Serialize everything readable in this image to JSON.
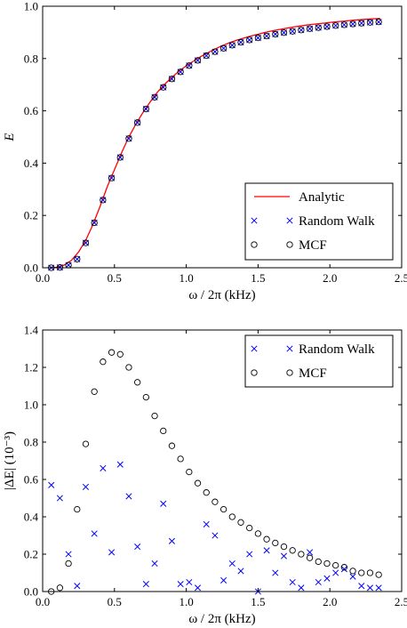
{
  "colors": {
    "analytic": "#ff0000",
    "random_walk": "#0000ff",
    "mcf": "#000000",
    "axes": "#000000",
    "background": "#ffffff"
  },
  "chart_data": [
    {
      "type": "line",
      "xlabel": "ω / 2π (kHz)",
      "ylabel": "E",
      "xlim": [
        0,
        2.5
      ],
      "ylim": [
        0,
        1.0
      ],
      "xticks": [
        "0.0",
        "0.5",
        "1.0",
        "1.5",
        "2.0",
        "2.5"
      ],
      "yticks": [
        "0.0",
        "0.2",
        "0.4",
        "0.6",
        "0.8",
        "1.0"
      ],
      "grid": false,
      "legend_position": "bottom-right",
      "series": [
        {
          "name": "Analytic",
          "style": "line",
          "x": [
            0.05,
            0.06,
            0.075,
            0.1,
            0.15,
            0.2,
            0.25,
            0.3,
            0.35,
            0.4,
            0.45,
            0.5,
            0.55,
            0.6,
            0.65,
            0.7,
            0.75,
            0.8,
            0.85,
            0.9,
            0.95,
            1.0,
            1.05,
            1.1,
            1.15,
            1.2,
            1.25,
            1.3,
            1.35,
            1.4,
            1.45,
            1.5,
            1.55,
            1.6,
            1.65,
            1.7,
            1.75,
            1.8,
            1.85,
            1.9,
            1.95,
            2.0,
            2.05,
            2.1,
            2.15,
            2.2,
            2.25,
            2.3,
            2.35
          ],
          "y": [
            0.0,
            0.0,
            0.001,
            0.002,
            0.01,
            0.028,
            0.06,
            0.105,
            0.165,
            0.235,
            0.31,
            0.375,
            0.44,
            0.5,
            0.55,
            0.595,
            0.635,
            0.672,
            0.702,
            0.728,
            0.752,
            0.772,
            0.79,
            0.807,
            0.822,
            0.836,
            0.849,
            0.86,
            0.87,
            0.878,
            0.886,
            0.893,
            0.9,
            0.906,
            0.911,
            0.916,
            0.921,
            0.925,
            0.929,
            0.932,
            0.935,
            0.938,
            0.941,
            0.943,
            0.946,
            0.948,
            0.95,
            0.952,
            0.953
          ]
        },
        {
          "name": "Random Walk",
          "style": "x-markers",
          "x": [
            0.06,
            0.12,
            0.18,
            0.24,
            0.3,
            0.36,
            0.42,
            0.48,
            0.54,
            0.6,
            0.66,
            0.72,
            0.78,
            0.84,
            0.9,
            0.96,
            1.02,
            1.08,
            1.14,
            1.2,
            1.26,
            1.32,
            1.38,
            1.44,
            1.5,
            1.56,
            1.62,
            1.68,
            1.74,
            1.8,
            1.86,
            1.92,
            1.98,
            2.04,
            2.1,
            2.16,
            2.22,
            2.28,
            2.34
          ],
          "y": [
            0.0,
            0.001,
            0.01,
            0.033,
            0.095,
            0.172,
            0.259,
            0.343,
            0.422,
            0.494,
            0.555,
            0.607,
            0.652,
            0.69,
            0.722,
            0.749,
            0.773,
            0.793,
            0.811,
            0.826,
            0.839,
            0.851,
            0.862,
            0.871,
            0.879,
            0.886,
            0.893,
            0.899,
            0.904,
            0.909,
            0.914,
            0.918,
            0.922,
            0.926,
            0.929,
            0.932,
            0.935,
            0.938,
            0.94
          ]
        },
        {
          "name": "MCF",
          "style": "open-circles",
          "x": [
            0.06,
            0.12,
            0.18,
            0.24,
            0.3,
            0.36,
            0.42,
            0.48,
            0.54,
            0.6,
            0.66,
            0.72,
            0.78,
            0.84,
            0.9,
            0.96,
            1.02,
            1.08,
            1.14,
            1.2,
            1.26,
            1.32,
            1.38,
            1.44,
            1.5,
            1.56,
            1.62,
            1.68,
            1.74,
            1.8,
            1.86,
            1.92,
            1.98,
            2.04,
            2.1,
            2.16,
            2.22,
            2.28,
            2.34
          ],
          "y": [
            0.0,
            0.001,
            0.01,
            0.033,
            0.095,
            0.172,
            0.259,
            0.343,
            0.422,
            0.494,
            0.555,
            0.607,
            0.652,
            0.69,
            0.722,
            0.749,
            0.773,
            0.793,
            0.811,
            0.826,
            0.839,
            0.851,
            0.862,
            0.871,
            0.879,
            0.886,
            0.893,
            0.899,
            0.904,
            0.909,
            0.914,
            0.918,
            0.922,
            0.926,
            0.929,
            0.932,
            0.935,
            0.938,
            0.94
          ]
        }
      ]
    },
    {
      "type": "scatter",
      "xlabel": "ω / 2π (kHz)",
      "ylabel": "|ΔE| (10⁻³)",
      "xlim": [
        0,
        2.5
      ],
      "ylim": [
        0,
        1.4
      ],
      "xticks": [
        "0.0",
        "0.5",
        "1.0",
        "1.5",
        "2.0",
        "2.5"
      ],
      "yticks": [
        "0.0",
        "0.2",
        "0.4",
        "0.6",
        "0.8",
        "1.0",
        "1.2",
        "1.4"
      ],
      "grid": false,
      "legend_position": "top-right",
      "series": [
        {
          "name": "Random Walk",
          "style": "x-markers",
          "x": [
            0.06,
            0.12,
            0.18,
            0.24,
            0.3,
            0.36,
            0.42,
            0.48,
            0.54,
            0.6,
            0.66,
            0.72,
            0.78,
            0.84,
            0.9,
            0.96,
            1.02,
            1.08,
            1.14,
            1.2,
            1.26,
            1.32,
            1.38,
            1.44,
            1.5,
            1.56,
            1.62,
            1.68,
            1.74,
            1.8,
            1.86,
            1.92,
            1.98,
            2.04,
            2.1,
            2.16,
            2.22,
            2.28,
            2.34
          ],
          "y": [
            0.57,
            0.5,
            0.2,
            0.03,
            0.56,
            0.31,
            0.66,
            0.21,
            0.68,
            0.51,
            0.24,
            0.04,
            0.15,
            0.47,
            0.27,
            0.04,
            0.05,
            0.02,
            0.36,
            0.3,
            0.06,
            0.15,
            0.11,
            0.2,
            0.0,
            0.22,
            0.1,
            0.19,
            0.05,
            0.02,
            0.21,
            0.05,
            0.07,
            0.1,
            0.12,
            0.08,
            0.03,
            0.02,
            0.02
          ]
        },
        {
          "name": "MCF",
          "style": "open-circles",
          "x": [
            0.06,
            0.12,
            0.18,
            0.24,
            0.3,
            0.36,
            0.42,
            0.48,
            0.54,
            0.6,
            0.66,
            0.72,
            0.78,
            0.84,
            0.9,
            0.96,
            1.02,
            1.08,
            1.14,
            1.2,
            1.26,
            1.32,
            1.38,
            1.44,
            1.5,
            1.56,
            1.62,
            1.68,
            1.74,
            1.8,
            1.86,
            1.92,
            1.98,
            2.04,
            2.1,
            2.16,
            2.22,
            2.28,
            2.34
          ],
          "y": [
            0.0,
            0.02,
            0.15,
            0.44,
            0.79,
            1.07,
            1.23,
            1.28,
            1.27,
            1.2,
            1.12,
            1.04,
            0.94,
            0.86,
            0.78,
            0.71,
            0.64,
            0.58,
            0.53,
            0.48,
            0.44,
            0.4,
            0.37,
            0.34,
            0.31,
            0.28,
            0.26,
            0.24,
            0.22,
            0.2,
            0.18,
            0.16,
            0.15,
            0.14,
            0.13,
            0.11,
            0.1,
            0.1,
            0.09
          ]
        }
      ]
    }
  ]
}
